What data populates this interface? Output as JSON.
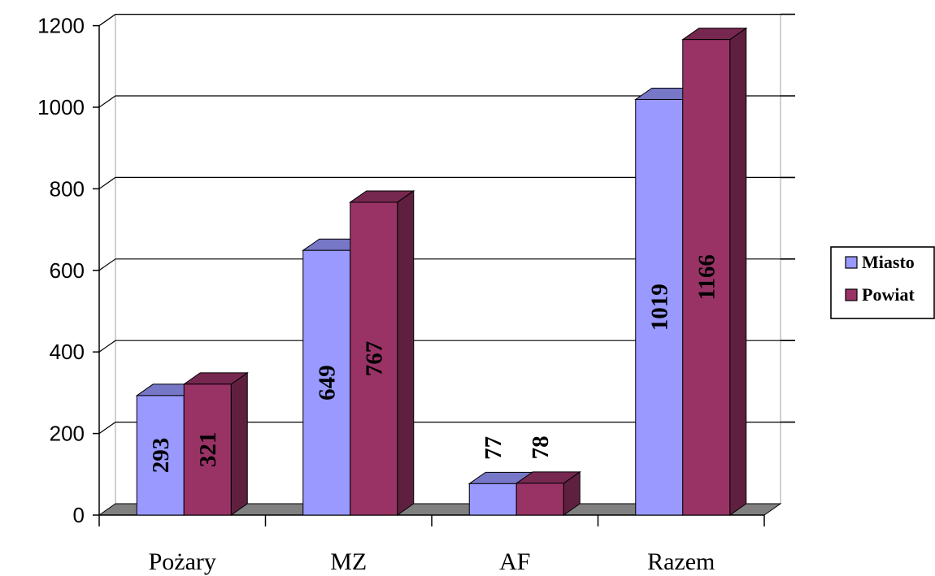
{
  "chart_data": {
    "type": "bar",
    "style": "3d-clustered-column",
    "categories": [
      "Pożary",
      "MZ",
      "AF",
      "Razem"
    ],
    "series": [
      {
        "name": "Miasto",
        "values": [
          293,
          649,
          77,
          1019
        ],
        "color": "#9999ff"
      },
      {
        "name": "Powiat",
        "values": [
          321,
          767,
          78,
          1166
        ],
        "color": "#993366"
      }
    ],
    "ylim": [
      0,
      1200
    ],
    "yticks": [
      0,
      200,
      400,
      600,
      800,
      1000,
      1200
    ],
    "grid": true,
    "legend": "right",
    "data_labels": true,
    "title": "",
    "xlabel": "",
    "ylabel": ""
  }
}
